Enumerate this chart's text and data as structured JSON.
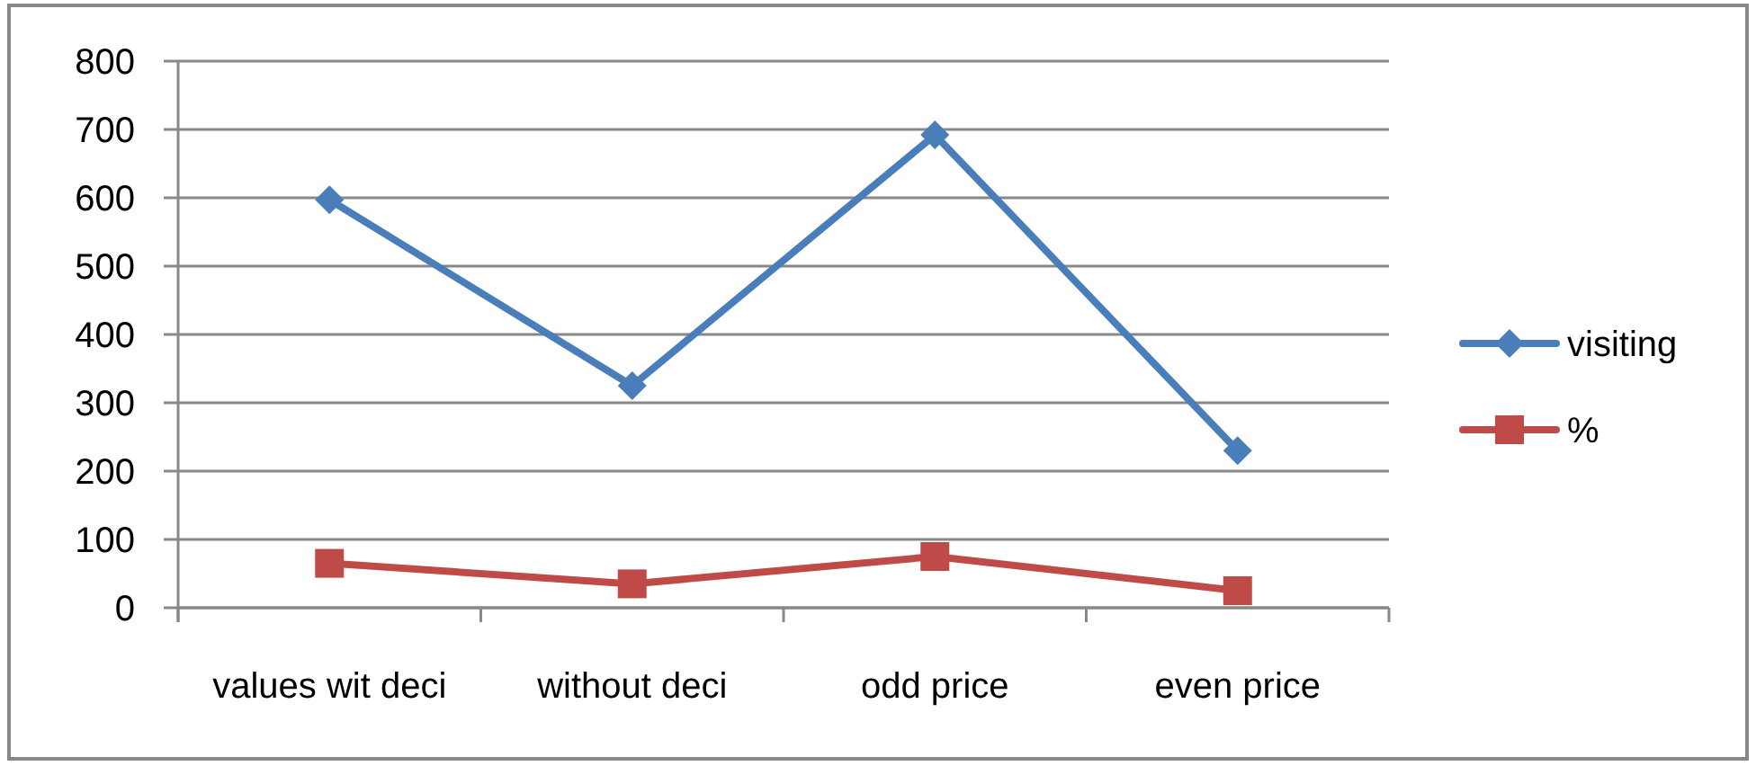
{
  "chart_data": {
    "type": "line",
    "categories": [
      "values wit deci",
      "without deci",
      "odd price",
      "even price"
    ],
    "series": [
      {
        "name": "visiting",
        "color": "#4a7ebb",
        "values": [
          597,
          325,
          692,
          230
        ],
        "marker": "diamond"
      },
      {
        "name": "%",
        "color": "#be4b48",
        "values": [
          65,
          35,
          75,
          25
        ],
        "marker": "square"
      }
    ],
    "ylim": [
      0,
      800
    ],
    "yticks": [
      0,
      100,
      200,
      300,
      400,
      500,
      600,
      700,
      800
    ],
    "grid": "y",
    "legend": "right"
  }
}
